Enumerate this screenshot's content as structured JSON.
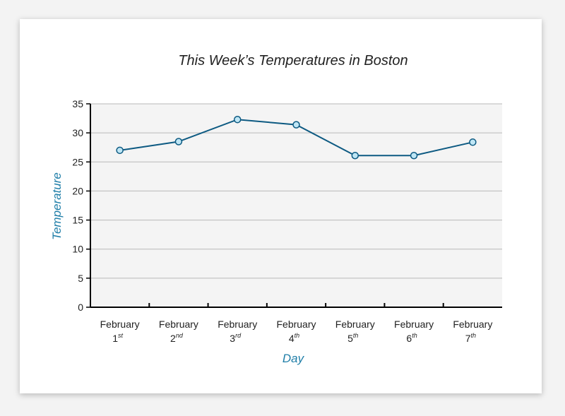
{
  "chart_data": {
    "type": "line",
    "title": "This Week’s Temperatures in Boston",
    "xlabel": "Day",
    "ylabel": "Temperature",
    "categories": [
      {
        "month": "February",
        "day": "1",
        "suffix": "st"
      },
      {
        "month": "February",
        "day": "2",
        "suffix": "nd"
      },
      {
        "month": "February",
        "day": "3",
        "suffix": "rd"
      },
      {
        "month": "February",
        "day": "4",
        "suffix": "th"
      },
      {
        "month": "February",
        "day": "5",
        "suffix": "th"
      },
      {
        "month": "February",
        "day": "6",
        "suffix": "th"
      },
      {
        "month": "February",
        "day": "7",
        "suffix": "th"
      }
    ],
    "values": [
      27,
      28.5,
      32.3,
      31.4,
      26.1,
      26.1,
      28.4
    ],
    "ylim": [
      0,
      35
    ],
    "yticks": [
      0,
      5,
      10,
      15,
      20,
      25,
      30,
      35
    ],
    "grid": true,
    "colors": {
      "line": "#0d5a82",
      "marker_fill": "#bfe6f5",
      "plot_bg": "#f4f4f4",
      "grid": "#b8b8b8",
      "axis_label": "#1f7ea8"
    }
  }
}
